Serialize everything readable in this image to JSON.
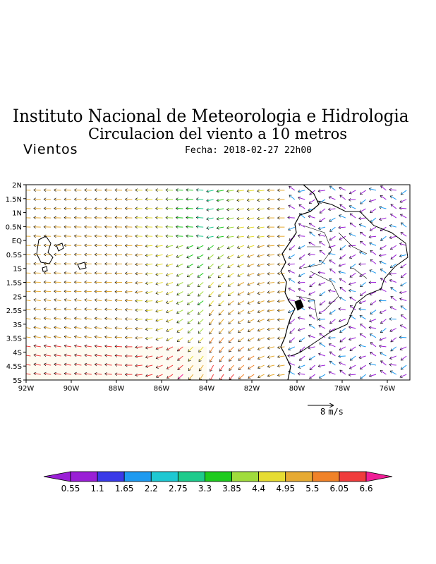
{
  "header": {
    "institution": "Instituto Nacional de Meteorologia e Hidrologia",
    "title": "Circulacion del viento a 10 metros",
    "subtitle": "Vientos",
    "date": "Fecha: 2018-02-27 22h00"
  },
  "map": {
    "lat_ticks": [
      "2N",
      "1.5N",
      "1N",
      "0.5N",
      "EQ",
      "0.5S",
      "1S",
      "1.5S",
      "2S",
      "2.5S",
      "3S",
      "3.5S",
      "4S",
      "4.5S",
      "5S"
    ],
    "lon_ticks": [
      "92W",
      "90W",
      "88W",
      "86W",
      "84W",
      "82W",
      "80W",
      "78W",
      "76W"
    ],
    "lon_range": [
      -92,
      -75
    ],
    "lat_range": [
      -5,
      2
    ]
  },
  "reference_vector": {
    "value": "8",
    "unit": "m/s"
  },
  "colorbar": {
    "labels": [
      "0.55",
      "1.1",
      "1.65",
      "2.2",
      "2.75",
      "3.3",
      "3.85",
      "4.4",
      "4.95",
      "5.5",
      "6.05",
      "6.6"
    ],
    "colors": [
      "#9a1fd6",
      "#9a1fd6",
      "#3a3ae8",
      "#1e9af0",
      "#1ec8d2",
      "#1ecb8c",
      "#1ecb1e",
      "#a0dc3c",
      "#e6dc32",
      "#e6aa32",
      "#f08228",
      "#f03c3c",
      "#f01e96"
    ]
  }
}
